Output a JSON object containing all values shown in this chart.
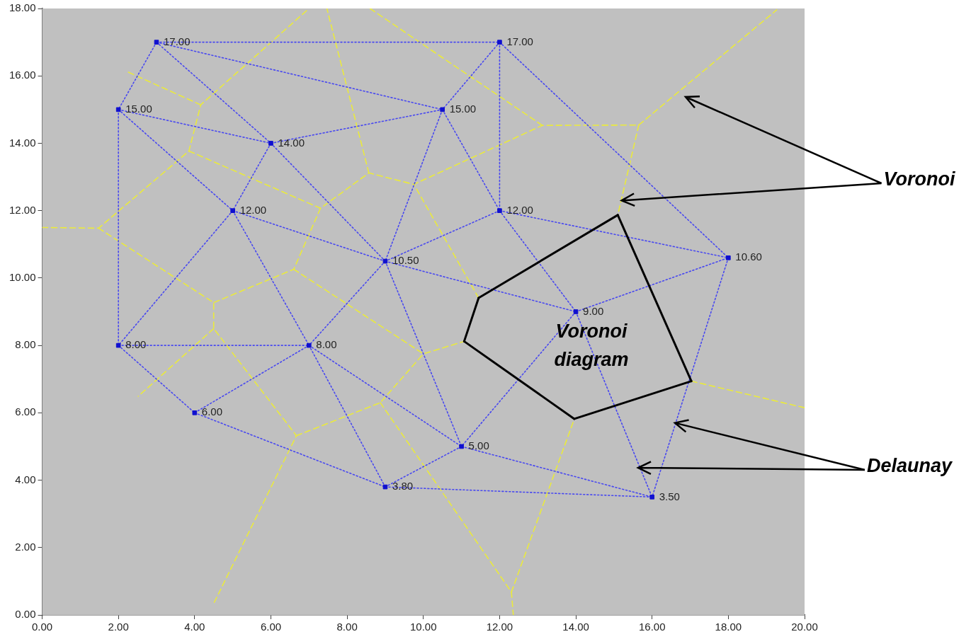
{
  "chart_data": {
    "type": "scatter",
    "xlim": [
      0,
      20
    ],
    "ylim": [
      0,
      18
    ],
    "xticks": [
      {
        "value": 0,
        "label": "0.00"
      },
      {
        "value": 2,
        "label": "2.00"
      },
      {
        "value": 4,
        "label": "4.00"
      },
      {
        "value": 6,
        "label": "6.00"
      },
      {
        "value": 8,
        "label": "8.00"
      },
      {
        "value": 10,
        "label": "10.00"
      },
      {
        "value": 12,
        "label": "12.00"
      },
      {
        "value": 14,
        "label": "14.00"
      },
      {
        "value": 16,
        "label": "16.00"
      },
      {
        "value": 18,
        "label": "18.00"
      },
      {
        "value": 20,
        "label": "20.00"
      }
    ],
    "yticks": [
      {
        "value": 0,
        "label": "0.00"
      },
      {
        "value": 2,
        "label": "2.00"
      },
      {
        "value": 4,
        "label": "4.00"
      },
      {
        "value": 6,
        "label": "6.00"
      },
      {
        "value": 8,
        "label": "8.00"
      },
      {
        "value": 10,
        "label": "10.00"
      },
      {
        "value": 12,
        "label": "12.00"
      },
      {
        "value": 14,
        "label": "14.00"
      },
      {
        "value": 16,
        "label": "16.00"
      },
      {
        "value": 18,
        "label": "18.00"
      }
    ],
    "annotations": [
      "Voronoi diagram",
      {
        "text": "Voronoi",
        "x": 15.2,
        "y": 12.3
      },
      {
        "text": "Delaunay",
        "x": 16.6,
        "y": 5.7
      }
    ],
    "series": [
      {
        "marker": "square",
        "color": "#1010d0",
        "x": [
          3,
          12,
          2,
          10.5,
          6,
          5,
          12,
          9,
          18,
          14,
          2,
          7,
          4,
          11,
          9,
          16
        ],
        "values": [
          17,
          17,
          15,
          15,
          14,
          12,
          12,
          10.5,
          10.6,
          9,
          8,
          8,
          6,
          5,
          3.8,
          3.5
        ],
        "value_labels": [
          "17.00",
          "17.00",
          "15.00",
          "15.00",
          "14.00",
          "12.00",
          "12.00",
          "10.50",
          "10.60",
          "9.00",
          "8.00",
          "8.00",
          "6.00",
          "5.00",
          "3.80",
          "3.50"
        ]
      },
      {
        "type": "line",
        "marker": "none",
        "line_style": "solid",
        "color": "#000000",
        "x": [
          15.1,
          17.03
        ],
        "values": [
          11.87,
          6.94
        ]
      },
      {
        "type": "line",
        "marker": "none",
        "line_style": "solid",
        "color": "#000000",
        "x": [
          17.03,
          13.96
        ],
        "values": [
          6.94,
          5.82
        ]
      },
      {
        "type": "line",
        "marker": "none",
        "line_style": "solid",
        "color": "#000000",
        "x": [
          13.96,
          11.07
        ],
        "values": [
          5.82,
          8.12
        ]
      },
      {
        "type": "line",
        "marker": "none",
        "line_style": "solid",
        "color": "#000000",
        "x": [
          11.07,
          11.45
        ],
        "values": [
          8.12,
          9.41
        ]
      },
      {
        "type": "line",
        "marker": "none",
        "line_style": "solid",
        "color": "#000000",
        "x": [
          11.45,
          15.1
        ],
        "values": [
          9.41,
          11.87
        ]
      },
      {
        "type": "line",
        "marker": "none",
        "line_style": "dotted",
        "color": "#4848f0",
        "x": [
          3,
          12
        ],
        "values": [
          17,
          17
        ]
      },
      {
        "type": "line",
        "marker": "none",
        "line_style": "dotted",
        "color": "#4848f0",
        "x": [
          3,
          2
        ],
        "values": [
          17,
          15
        ]
      },
      {
        "type": "line",
        "marker": "none",
        "line_style": "dotted",
        "color": "#4848f0",
        "x": [
          3,
          10.5
        ],
        "values": [
          17,
          15
        ]
      },
      {
        "type": "line",
        "marker": "none",
        "line_style": "dotted",
        "color": "#4848f0",
        "x": [
          3,
          6
        ],
        "values": [
          17,
          14
        ]
      },
      {
        "type": "line",
        "marker": "none",
        "line_style": "dotted",
        "color": "#4848f0",
        "x": [
          12,
          10.5
        ],
        "values": [
          17,
          15
        ]
      },
      {
        "type": "line",
        "marker": "none",
        "line_style": "dotted",
        "color": "#4848f0",
        "x": [
          12,
          12
        ],
        "values": [
          17,
          12
        ]
      },
      {
        "type": "line",
        "marker": "none",
        "line_style": "dotted",
        "color": "#4848f0",
        "x": [
          12,
          18
        ],
        "values": [
          17,
          10.6
        ]
      },
      {
        "type": "line",
        "marker": "none",
        "line_style": "dotted",
        "color": "#4848f0",
        "x": [
          2,
          6
        ],
        "values": [
          15,
          14
        ]
      },
      {
        "type": "line",
        "marker": "none",
        "line_style": "dotted",
        "color": "#4848f0",
        "x": [
          2,
          5
        ],
        "values": [
          15,
          12
        ]
      },
      {
        "type": "line",
        "marker": "none",
        "line_style": "dotted",
        "color": "#4848f0",
        "x": [
          2,
          2
        ],
        "values": [
          15,
          8
        ]
      },
      {
        "type": "line",
        "marker": "none",
        "line_style": "dotted",
        "color": "#4848f0",
        "x": [
          6,
          10.5
        ],
        "values": [
          14,
          15
        ]
      },
      {
        "type": "line",
        "marker": "none",
        "line_style": "dotted",
        "color": "#4848f0",
        "x": [
          6,
          5
        ],
        "values": [
          14,
          12
        ]
      },
      {
        "type": "line",
        "marker": "none",
        "line_style": "dotted",
        "color": "#4848f0",
        "x": [
          6,
          9
        ],
        "values": [
          14,
          10.5
        ]
      },
      {
        "type": "line",
        "marker": "none",
        "line_style": "dotted",
        "color": "#4848f0",
        "x": [
          10.5,
          12
        ],
        "values": [
          15,
          12
        ]
      },
      {
        "type": "line",
        "marker": "none",
        "line_style": "dotted",
        "color": "#4848f0",
        "x": [
          10.5,
          9
        ],
        "values": [
          15,
          10.5
        ]
      },
      {
        "type": "line",
        "marker": "none",
        "line_style": "dotted",
        "color": "#4848f0",
        "x": [
          5,
          9
        ],
        "values": [
          12,
          10.5
        ]
      },
      {
        "type": "line",
        "marker": "none",
        "line_style": "dotted",
        "color": "#4848f0",
        "x": [
          5,
          2
        ],
        "values": [
          12,
          8
        ]
      },
      {
        "type": "line",
        "marker": "none",
        "line_style": "dotted",
        "color": "#4848f0",
        "x": [
          5,
          7
        ],
        "values": [
          12,
          8
        ]
      },
      {
        "type": "line",
        "marker": "none",
        "line_style": "dotted",
        "color": "#4848f0",
        "x": [
          12,
          9
        ],
        "values": [
          12,
          10.5
        ]
      },
      {
        "type": "line",
        "marker": "none",
        "line_style": "dotted",
        "color": "#4848f0",
        "x": [
          12,
          18
        ],
        "values": [
          12,
          10.6
        ]
      },
      {
        "type": "line",
        "marker": "none",
        "line_style": "dotted",
        "color": "#4848f0",
        "x": [
          12,
          14
        ],
        "values": [
          12,
          9
        ]
      },
      {
        "type": "line",
        "marker": "none",
        "line_style": "dotted",
        "color": "#4848f0",
        "x": [
          9,
          14
        ],
        "values": [
          10.5,
          9
        ]
      },
      {
        "type": "line",
        "marker": "none",
        "line_style": "dotted",
        "color": "#4848f0",
        "x": [
          9,
          7
        ],
        "values": [
          10.5,
          8
        ]
      },
      {
        "type": "line",
        "marker": "none",
        "line_style": "dotted",
        "color": "#4848f0",
        "x": [
          9,
          11
        ],
        "values": [
          10.5,
          5
        ]
      },
      {
        "type": "line",
        "marker": "none",
        "line_style": "dotted",
        "color": "#4848f0",
        "x": [
          14,
          18
        ],
        "values": [
          9,
          10.6
        ]
      },
      {
        "type": "line",
        "marker": "none",
        "line_style": "dotted",
        "color": "#4848f0",
        "x": [
          14,
          11
        ],
        "values": [
          9,
          5
        ]
      },
      {
        "type": "line",
        "marker": "none",
        "line_style": "dotted",
        "color": "#4848f0",
        "x": [
          14,
          16
        ],
        "values": [
          9,
          3.5
        ]
      },
      {
        "type": "line",
        "marker": "none",
        "line_style": "dotted",
        "color": "#4848f0",
        "x": [
          18,
          16
        ],
        "values": [
          10.6,
          3.5
        ]
      },
      {
        "type": "line",
        "marker": "none",
        "line_style": "dotted",
        "color": "#4848f0",
        "x": [
          2,
          7
        ],
        "values": [
          8,
          8
        ]
      },
      {
        "type": "line",
        "marker": "none",
        "line_style": "dotted",
        "color": "#4848f0",
        "x": [
          2,
          4
        ],
        "values": [
          8,
          6
        ]
      },
      {
        "type": "line",
        "marker": "none",
        "line_style": "dotted",
        "color": "#4848f0",
        "x": [
          7,
          4
        ],
        "values": [
          8,
          6
        ]
      },
      {
        "type": "line",
        "marker": "none",
        "line_style": "dotted",
        "color": "#4848f0",
        "x": [
          7,
          11
        ],
        "values": [
          8,
          5
        ]
      },
      {
        "type": "line",
        "marker": "none",
        "line_style": "dotted",
        "color": "#4848f0",
        "x": [
          7,
          9
        ],
        "values": [
          8,
          3.8
        ]
      },
      {
        "type": "line",
        "marker": "none",
        "line_style": "dotted",
        "color": "#4848f0",
        "x": [
          4,
          9
        ],
        "values": [
          6,
          3.8
        ]
      },
      {
        "type": "line",
        "marker": "none",
        "line_style": "dotted",
        "color": "#4848f0",
        "x": [
          11,
          9
        ],
        "values": [
          5,
          3.8
        ]
      },
      {
        "type": "line",
        "marker": "none",
        "line_style": "dotted",
        "color": "#4848f0",
        "x": [
          11,
          16
        ],
        "values": [
          5,
          3.5
        ]
      },
      {
        "type": "line",
        "marker": "none",
        "line_style": "dotted",
        "color": "#4848f0",
        "x": [
          9,
          16
        ],
        "values": [
          3.8,
          3.5
        ]
      },
      {
        "type": "line",
        "marker": "none",
        "line_style": "dashed",
        "color": "#eaea3c",
        "x": [
          0,
          1.48,
          3.85,
          4.16,
          7.0
        ],
        "values": [
          11.5,
          11.48,
          13.77,
          15.14,
          18.0
        ]
      },
      {
        "type": "line",
        "marker": "none",
        "line_style": "dashed",
        "color": "#eaea3c",
        "x": [
          1.48,
          4.5,
          4.5,
          6.67,
          4.5
        ],
        "values": [
          11.48,
          9.27,
          8.5,
          5.32,
          0.34
        ]
      },
      {
        "type": "line",
        "marker": "none",
        "line_style": "dashed",
        "color": "#eaea3c",
        "x": [
          4.16,
          2.24
        ],
        "values": [
          15.14,
          16.12
        ]
      },
      {
        "type": "line",
        "marker": "none",
        "line_style": "dashed",
        "color": "#eaea3c",
        "x": [
          3.85,
          7.3,
          8.57,
          9.75,
          13.12,
          15.65,
          19.27
        ],
        "values": [
          13.77,
          12.07,
          13.12,
          12.78,
          14.53,
          14.54,
          17.96
        ]
      },
      {
        "type": "line",
        "marker": "none",
        "line_style": "dashed",
        "color": "#eaea3c",
        "x": [
          8.57,
          7.47
        ],
        "values": [
          13.12,
          18.0
        ]
      },
      {
        "type": "line",
        "marker": "none",
        "line_style": "dashed",
        "color": "#eaea3c",
        "x": [
          7.3,
          6.6,
          4.5
        ],
        "values": [
          12.07,
          10.26,
          9.27
        ]
      },
      {
        "type": "line",
        "marker": "none",
        "line_style": "dashed",
        "color": "#eaea3c",
        "x": [
          6.6,
          10.0,
          11.07
        ],
        "values": [
          10.26,
          7.75,
          8.12
        ]
      },
      {
        "type": "line",
        "marker": "none",
        "line_style": "dashed",
        "color": "#eaea3c",
        "x": [
          11.45,
          9.75
        ],
        "values": [
          9.41,
          12.78
        ]
      },
      {
        "type": "line",
        "marker": "none",
        "line_style": "dashed",
        "color": "#eaea3c",
        "x": [
          4.5,
          2.52
        ],
        "values": [
          8.5,
          6.49
        ]
      },
      {
        "type": "line",
        "marker": "none",
        "line_style": "dashed",
        "color": "#eaea3c",
        "x": [
          6.67,
          8.87,
          10.0
        ],
        "values": [
          5.32,
          6.3,
          7.75
        ]
      },
      {
        "type": "line",
        "marker": "none",
        "line_style": "dashed",
        "color": "#eaea3c",
        "x": [
          8.87,
          12.31,
          12.36
        ],
        "values": [
          6.3,
          0.68,
          0
        ]
      },
      {
        "type": "line",
        "marker": "none",
        "line_style": "dashed",
        "color": "#eaea3c",
        "x": [
          12.31,
          13.96
        ],
        "values": [
          0.68,
          5.82
        ]
      },
      {
        "type": "line",
        "marker": "none",
        "line_style": "dashed",
        "color": "#eaea3c",
        "x": [
          17.03,
          20
        ],
        "values": [
          6.94,
          6.15
        ]
      },
      {
        "type": "line",
        "marker": "none",
        "line_style": "dashed",
        "color": "#eaea3c",
        "x": [
          13.12,
          8.6
        ],
        "values": [
          14.53,
          18.0
        ]
      },
      {
        "type": "line",
        "marker": "none",
        "line_style": "dashed",
        "color": "#eaea3c",
        "x": [
          15.65,
          15.1
        ],
        "values": [
          14.54,
          11.87
        ]
      }
    ]
  }
}
